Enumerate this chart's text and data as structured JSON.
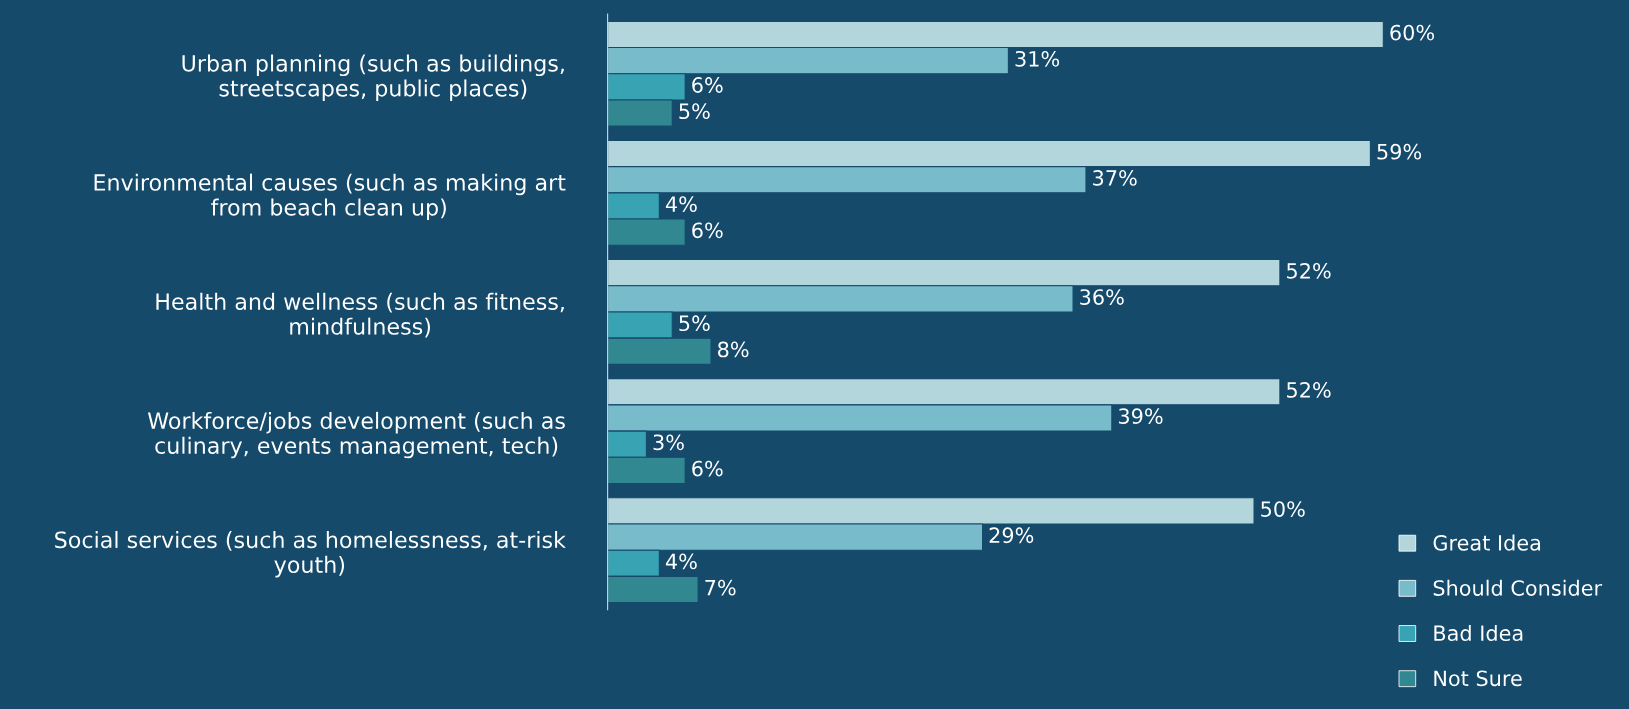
{
  "chart_data": {
    "type": "bar",
    "orientation": "horizontal",
    "categories": [
      "Urban planning (such as buildings,\nstreetscapes, public places)",
      "Environmental causes (such as making art\nfrom beach clean up)",
      "Health and wellness (such as fitness,\nmindfulness)",
      "Workforce/jobs development (such as\nculinary, events management, tech)",
      "Social services (such as homelessness, at-risk\nyouth)"
    ],
    "series": [
      {
        "name": "Great Idea",
        "color": "#b3d6dd",
        "values": [
          60,
          59,
          52,
          52,
          50
        ],
        "value_labels": [
          "60%",
          "59%",
          "52%",
          "52%",
          "50%"
        ]
      },
      {
        "name": "Should Consider",
        "color": "#78bccb",
        "values": [
          31,
          37,
          36,
          39,
          29
        ],
        "value_labels": [
          "31%",
          "37%",
          "36%",
          "39%",
          "29%"
        ]
      },
      {
        "name": "Bad Idea",
        "color": "#38a3b3",
        "values": [
          6,
          4,
          5,
          3,
          4
        ],
        "value_labels": [
          "6%",
          "4%",
          "5%",
          "3%",
          "4%"
        ]
      },
      {
        "name": "Not Sure",
        "color": "#318891",
        "values": [
          5,
          6,
          8,
          6,
          7
        ],
        "value_labels": [
          "5%",
          "6%",
          "8%",
          "6%",
          "7%"
        ]
      }
    ],
    "legend": "bottom right",
    "grid": false
  }
}
